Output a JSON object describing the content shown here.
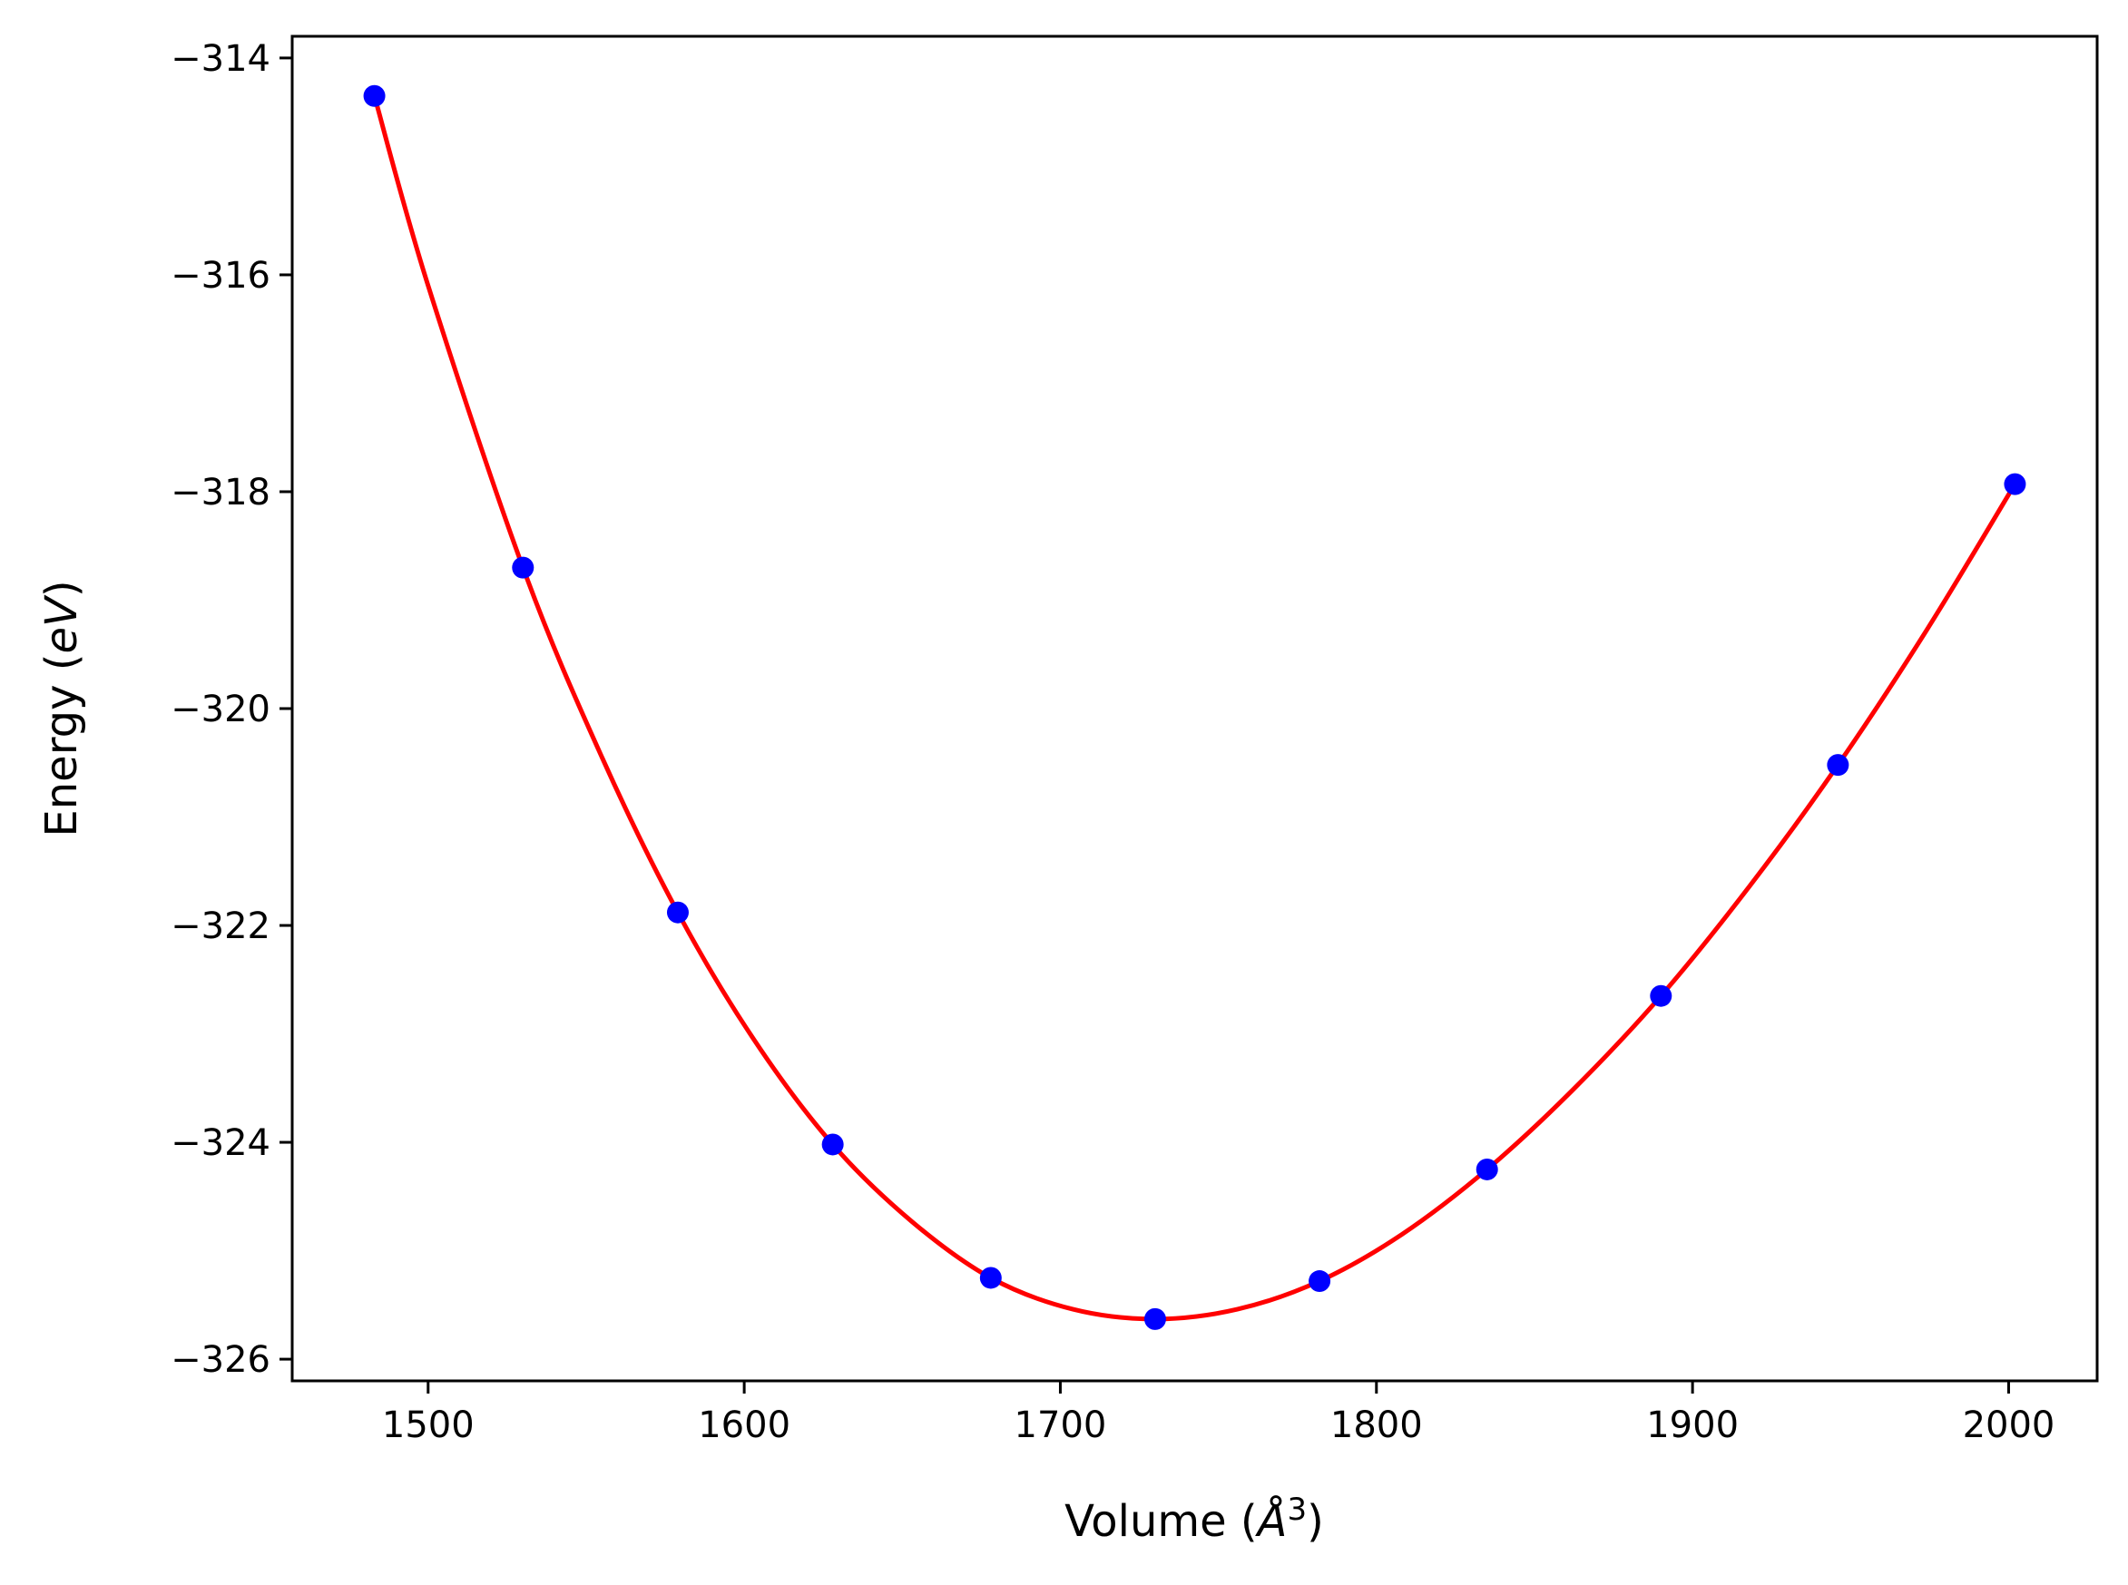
{
  "chart_data": {
    "type": "scatter",
    "xlabel": "Volume (",
    "xlabel_unit": "Å",
    "xlabel_exp": "3",
    "xlabel_close": ")",
    "ylabel": "Energy (",
    "ylabel_unit": "eV",
    "ylabel_close": ")",
    "xlim": [
      1457,
      2028
    ],
    "ylim": [
      -326.2,
      -313.8
    ],
    "x_ticks": [
      1500,
      1600,
      1700,
      1800,
      1900,
      2000
    ],
    "x_tick_labels": [
      "1500",
      "1600",
      "1700",
      "1800",
      "1900",
      "2000"
    ],
    "y_ticks": [
      -314,
      -316,
      -318,
      -320,
      -322,
      -324,
      -326
    ],
    "y_tick_labels": [
      "−314",
      "−316",
      "−318",
      "−320",
      "−322",
      "−324",
      "−326"
    ],
    "grid": false,
    "legend": false,
    "series": [
      {
        "kind": "points",
        "color": "#0000ff",
        "x": [
          1483,
          1530,
          1579,
          1628,
          1678,
          1730,
          1782,
          1835,
          1890,
          1946,
          2002
        ],
        "y": [
          -314.35,
          -318.7,
          -321.88,
          -324.02,
          -325.25,
          -325.63,
          -325.28,
          -324.25,
          -322.65,
          -320.52,
          -317.93
        ]
      },
      {
        "kind": "fit-curve",
        "color": "#ff0000",
        "x": [
          1483,
          1500,
          1530,
          1555,
          1579,
          1603,
          1628,
          1653,
          1678,
          1704,
          1730,
          1756,
          1782,
          1808,
          1835,
          1862,
          1890,
          1918,
          1946,
          1974,
          2002
        ],
        "y": [
          -314.35,
          -316.1,
          -318.7,
          -320.45,
          -321.88,
          -323.05,
          -324.02,
          -324.73,
          -325.25,
          -325.54,
          -325.63,
          -325.54,
          -325.28,
          -324.85,
          -324.25,
          -323.52,
          -322.65,
          -321.64,
          -320.52,
          -319.28,
          -317.93
        ]
      }
    ]
  }
}
